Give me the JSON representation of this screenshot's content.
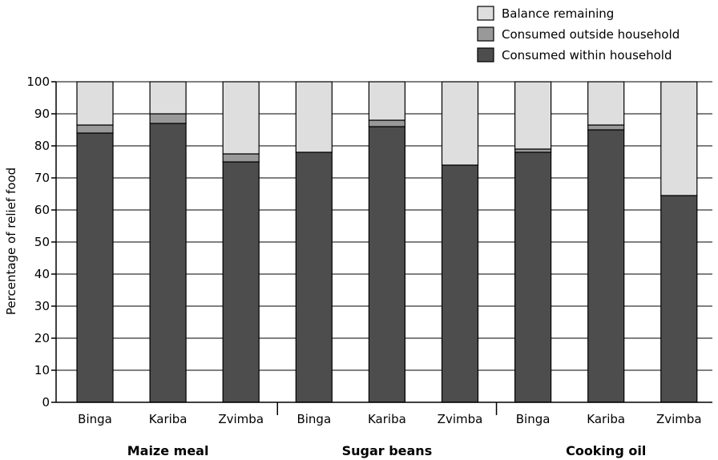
{
  "chart_data": {
    "type": "bar",
    "stacked": true,
    "ylabel": "Percentage of relief food",
    "ylim": [
      0,
      100
    ],
    "yticks": [
      0,
      10,
      20,
      30,
      40,
      50,
      60,
      70,
      80,
      90,
      100
    ],
    "grid": true,
    "legend_position": "top-right",
    "groups": [
      "Maize meal",
      "Sugar beans",
      "Cooking oil"
    ],
    "categories": [
      "Binga",
      "Kariba",
      "Zvimba",
      "Binga",
      "Kariba",
      "Zvimba",
      "Binga",
      "Kariba",
      "Zvimba"
    ],
    "series": [
      {
        "name": "Consumed within household",
        "color": "#4d4d4d",
        "values": [
          84,
          87,
          75,
          78,
          86,
          74,
          78,
          85,
          64.5
        ]
      },
      {
        "name": "Consumed outside household",
        "color": "#999999",
        "values": [
          2.5,
          3,
          2.5,
          0,
          2,
          0,
          1,
          1.5,
          0
        ]
      },
      {
        "name": "Balance remaining",
        "color": "#dedede",
        "values": [
          13.5,
          10,
          22.5,
          22,
          12,
          26,
          21,
          13.5,
          35.5
        ]
      }
    ]
  }
}
